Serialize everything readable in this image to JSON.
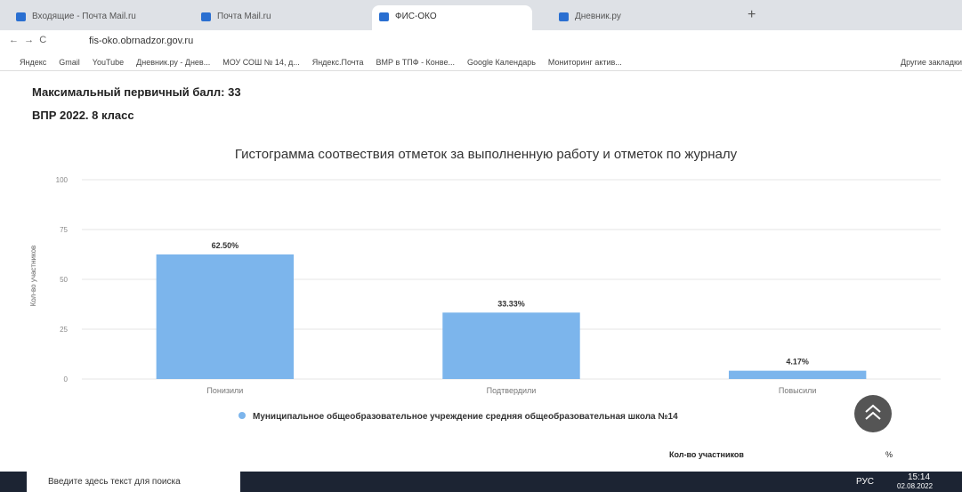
{
  "browser": {
    "tabs": [
      "Входящие - Почта Mail.ru",
      "Почта Mail.ru",
      "ФИС-ОКО",
      "Дневник.ру"
    ],
    "url": "fis-oko.obrnadzor.gov.ru",
    "bookmarks": [
      "Яндекс",
      "Gmail",
      "YouTube",
      "Дневник.ру - Днев...",
      "МОУ СОШ № 14, д...",
      "Яндекс.Почта",
      "ВМР в ТПФ - Конве...",
      "Google Календарь",
      "Мониторинг актив...",
      "Другие закладки"
    ]
  },
  "page": {
    "max_score": "Максимальный первичный балл: 33",
    "title": "ВПР 2022. 8 класс",
    "table_headers": [
      "Кол-во участников",
      "%"
    ]
  },
  "chart_data": {
    "type": "bar",
    "title": "Гистограмма соотвествия отметок за выполненную работу и отметок по журналу",
    "ylabel": "Кол-во участников",
    "categories": [
      "Понизили",
      "Подтвердили",
      "Повысили"
    ],
    "series": [
      {
        "name": "Муниципальное общеобразовательное учреждение средняя общеобразовательная школа №14",
        "color": "#7cb5ec",
        "values": [
          62.5,
          33.33,
          4.17
        ],
        "value_labels": [
          "62.50%",
          "33.33%",
          "4.17%"
        ]
      }
    ],
    "ylim": [
      0,
      100
    ],
    "yticks": [
      0,
      25,
      50,
      75,
      100
    ],
    "grid": true,
    "legend": "bottom"
  },
  "taskbar": {
    "search": "Введите здесь текст для поиска",
    "lang": "РУС",
    "time": "15:14",
    "date": "02.08.2022"
  }
}
